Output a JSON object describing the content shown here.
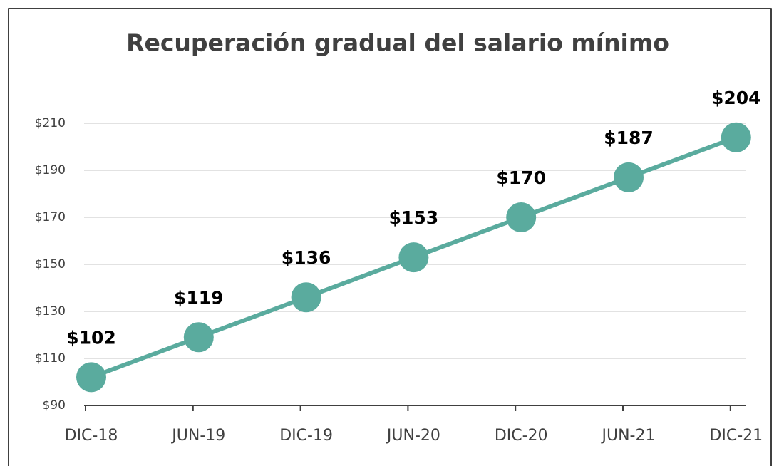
{
  "chart_data": {
    "type": "line",
    "title": "Recuperación gradual del salario mínimo",
    "categories": [
      "DIC-18",
      "JUN-19",
      "DIC-19",
      "JUN-20",
      "DIC-20",
      "JUN-21",
      "DIC-21"
    ],
    "values": [
      102,
      119,
      136,
      153,
      170,
      187,
      204
    ],
    "value_labels": [
      "$102",
      "$119",
      "$136",
      "$153",
      "$170",
      "$187",
      "$204"
    ],
    "color": "#5aab9e",
    "ylim": [
      90,
      210
    ],
    "yticks": [
      {
        "value": 90,
        "label": "$90"
      },
      {
        "value": 110,
        "label": "$110"
      },
      {
        "value": 130,
        "label": "$130"
      },
      {
        "value": 150,
        "label": "$150"
      },
      {
        "value": 170,
        "label": "$170"
      },
      {
        "value": 190,
        "label": "$190"
      },
      {
        "value": 210,
        "label": "$210"
      }
    ],
    "grid": true
  }
}
